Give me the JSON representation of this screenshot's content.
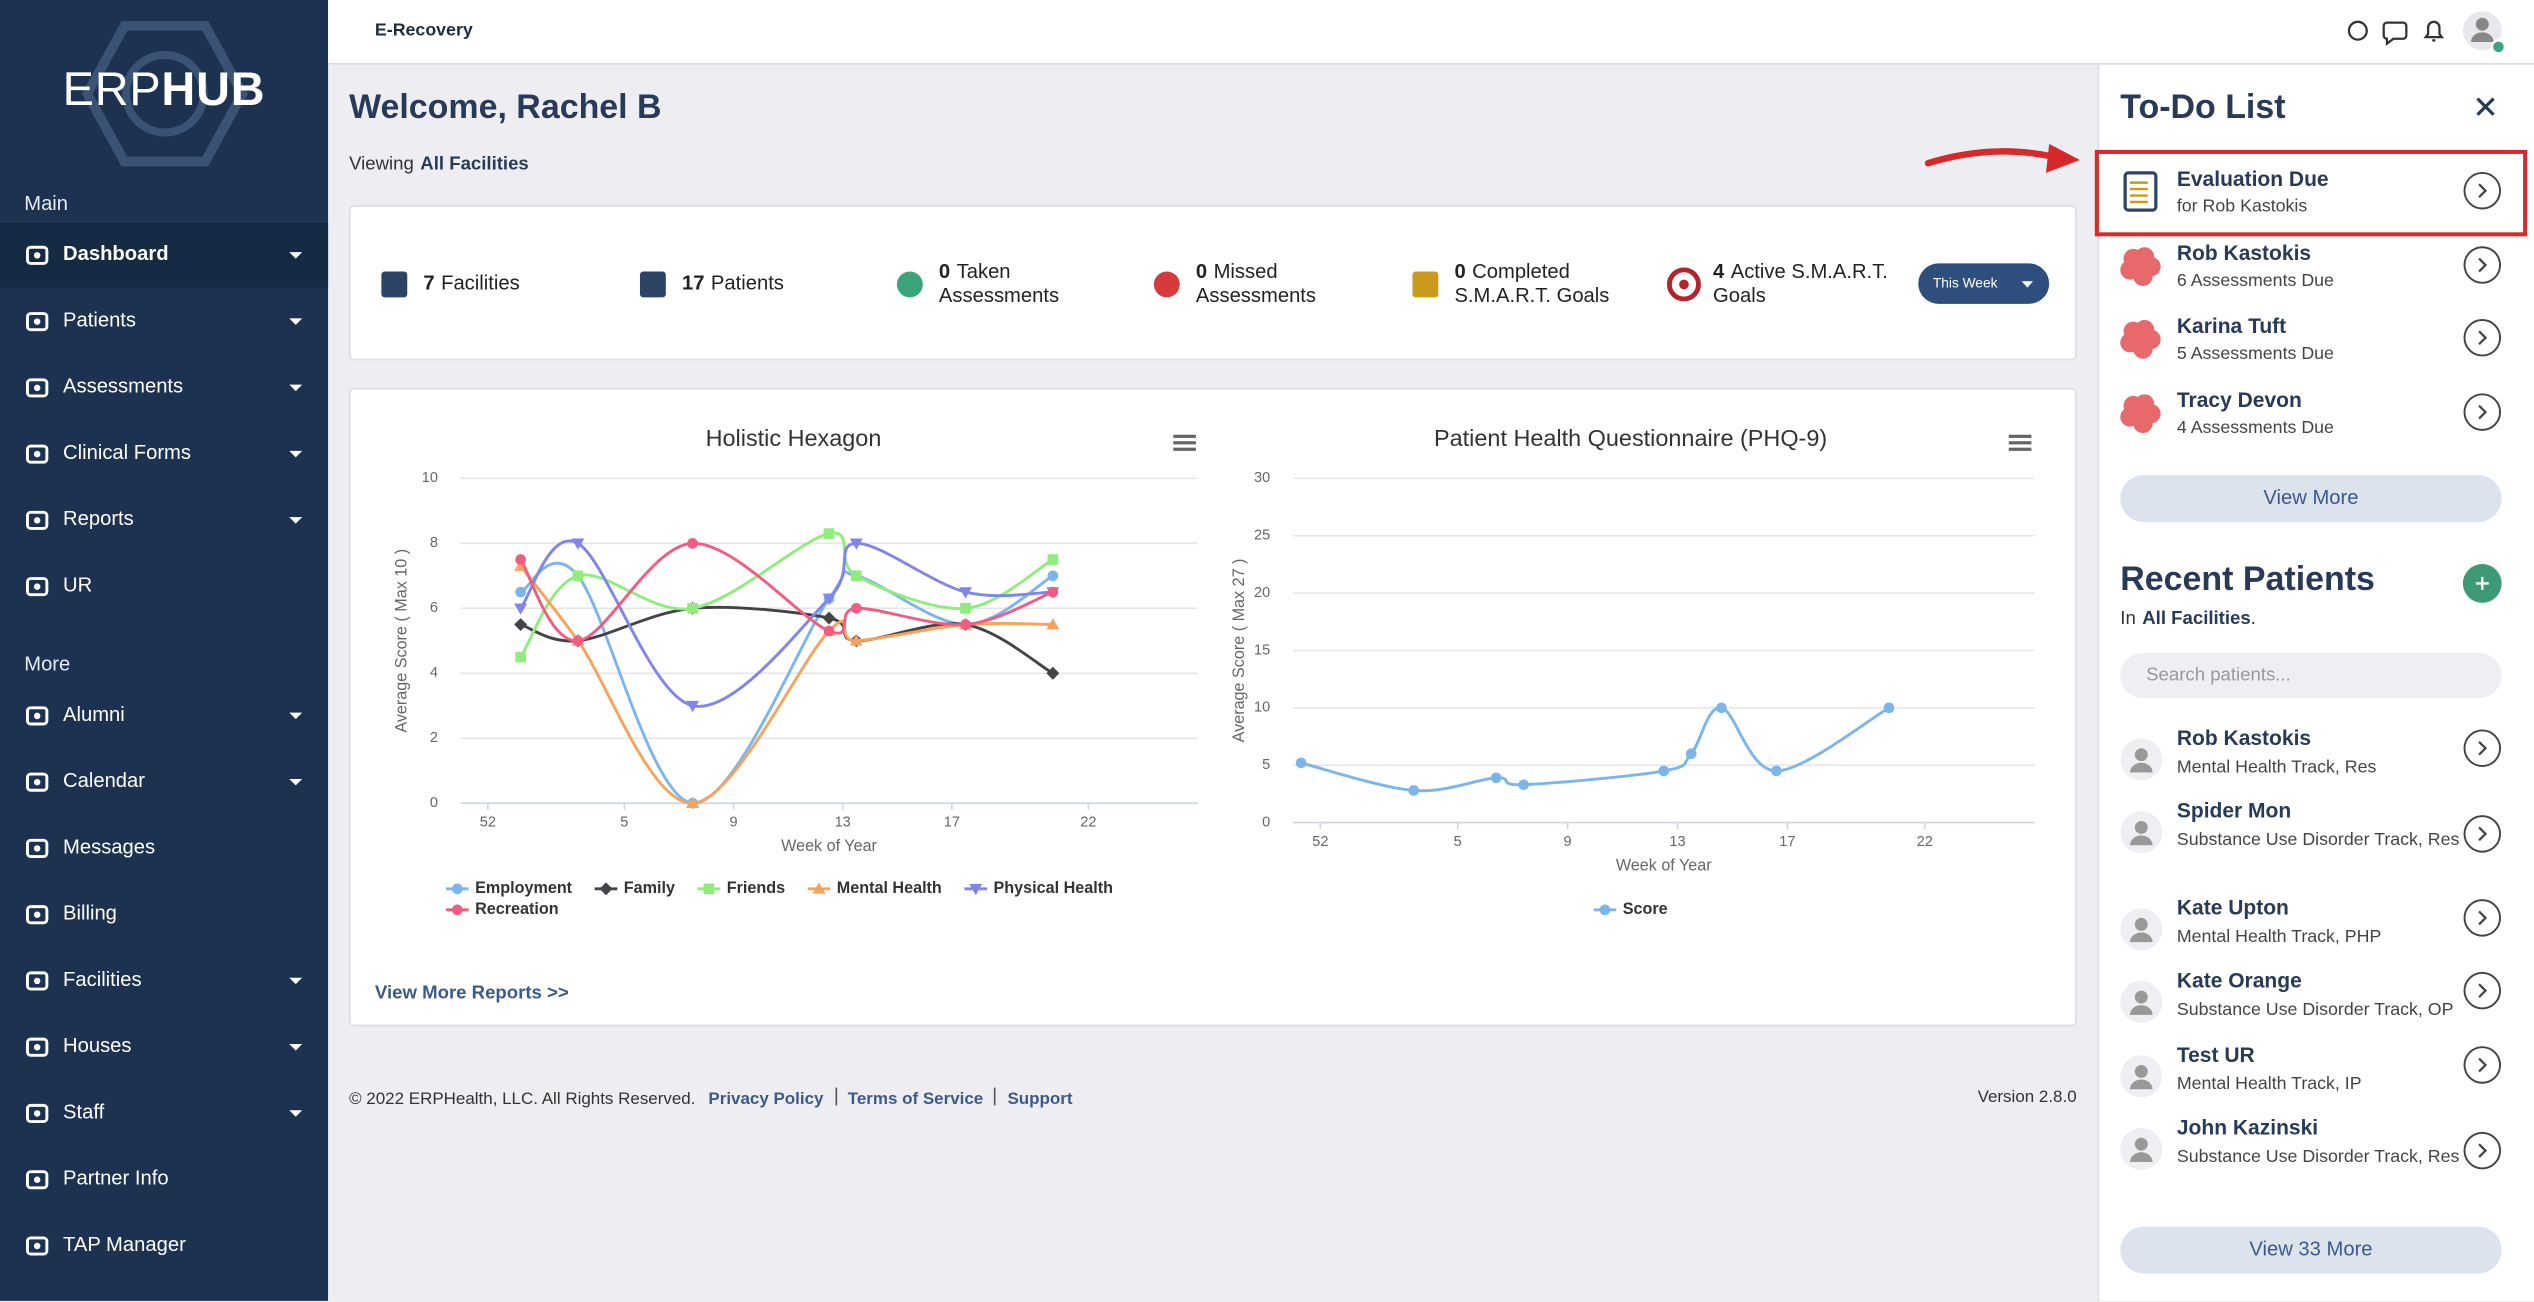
{
  "sidebar": {
    "logo": {
      "light": "ERP",
      "bold": "HUB"
    },
    "sections": [
      {
        "title": "Main",
        "items": [
          "Dashboard",
          "Patients",
          "Assessments",
          "Clinical Forms",
          "Reports",
          "UR"
        ]
      },
      {
        "title": "More",
        "items": [
          "Alumni",
          "Calendar",
          "Messages",
          "Billing",
          "Facilities",
          "Houses",
          "Staff",
          "Partner Info",
          "TAP Manager"
        ]
      }
    ]
  },
  "header": {
    "title": "E-Recovery"
  },
  "welcome": {
    "title": "Welcome, Rachel B",
    "viewing": "Viewing",
    "scope": "All Facilities"
  },
  "stats": {
    "items": [
      {
        "value": 7,
        "label": "Facilities"
      },
      {
        "value": 17,
        "label": "Patients"
      },
      {
        "value": 0,
        "label": "Taken Assessments"
      },
      {
        "value": 0,
        "label": "Missed Assessments"
      },
      {
        "value": 0,
        "label": "Completed S.M.A.R.T. Goals"
      },
      {
        "value": 4,
        "label": "Active S.M.A.R.T. Goals"
      }
    ],
    "period": "This Week"
  },
  "chart_data": [
    {
      "type": "line",
      "title": "Holistic Hexagon",
      "x_label": "Week of Year",
      "y_label": "Average Score ( Max 10 )",
      "x": [
        53.2,
        55.3,
        59.5,
        64.5,
        65.5,
        69.5,
        72.7
      ],
      "xlim": [
        51,
        78
      ],
      "xticks": [
        52,
        {
          "value": 57,
          "label": "5"
        },
        {
          "value": 61,
          "label": "9"
        },
        {
          "value": 65,
          "label": "13"
        },
        {
          "value": 69,
          "label": "17"
        },
        {
          "value": 74,
          "label": "22"
        }
      ],
      "ylim": [
        0,
        10
      ],
      "yticks": [
        0,
        2,
        4,
        6,
        8,
        10
      ],
      "grid": true,
      "series": [
        {
          "name": "Employment",
          "color": "#7cb5ec",
          "marker": "circle",
          "values": [
            6.5,
            7,
            0,
            6.3,
            7,
            5.5,
            7
          ]
        },
        {
          "name": "Family",
          "color": "#434348",
          "marker": "diamond",
          "values": [
            5.5,
            5,
            6,
            5.7,
            5,
            5.5,
            4
          ]
        },
        {
          "name": "Friends",
          "color": "#90ed7d",
          "marker": "square",
          "values": [
            4.5,
            7,
            6,
            8.3,
            7,
            6,
            7.5
          ]
        },
        {
          "name": "Mental Health",
          "color": "#f7a35c",
          "marker": "triangle",
          "values": [
            7.3,
            5,
            0,
            5.3,
            5,
            5.5,
            5.5
          ]
        },
        {
          "name": "Physical Health",
          "color": "#8085e9",
          "marker": "triangle-down",
          "values": [
            6,
            8,
            3,
            6.3,
            8,
            6.5,
            6.5
          ]
        },
        {
          "name": "Recreation",
          "color": "#f15c80",
          "marker": "circle",
          "values": [
            7.5,
            5,
            8,
            5.3,
            6,
            5.5,
            6.5
          ]
        }
      ]
    },
    {
      "type": "line",
      "title": "Patient Health Questionnaire (PHQ-9)",
      "x_label": "Week of Year",
      "y_label": "Average Score ( Max 27 )",
      "x": [
        51.3,
        55.4,
        58.4,
        59.4,
        64.5,
        65.5,
        66.6,
        68.6,
        72.7
      ],
      "xlim": [
        51,
        78
      ],
      "xticks": [
        52,
        {
          "value": 57,
          "label": "5"
        },
        {
          "value": 61,
          "label": "9"
        },
        {
          "value": 65,
          "label": "13"
        },
        {
          "value": 69,
          "label": "17"
        },
        {
          "value": 74,
          "label": "22"
        }
      ],
      "ylim": [
        0,
        30
      ],
      "yticks": [
        0,
        5,
        10,
        15,
        20,
        25,
        30
      ],
      "grid": true,
      "series": [
        {
          "name": "Score",
          "color": "#7cb5ec",
          "marker": "circle",
          "values": [
            5.2,
            2.8,
            3.9,
            3.3,
            4.5,
            6,
            10,
            4.5,
            10
          ]
        }
      ]
    }
  ],
  "reports_link": "View More Reports >>",
  "footer": {
    "copyright": "© 2022 ERPHealth, LLC. All Rights Reserved.",
    "links": [
      "Privacy Policy",
      "Terms of Service",
      "Support"
    ],
    "version": "Version 2.8.0"
  },
  "todo": {
    "title": "To-Do List",
    "items": [
      {
        "title": "Evaluation Due",
        "subtitle": "for Rob Kastokis"
      },
      {
        "title": "Rob Kastokis",
        "subtitle": "6 Assessments Due"
      },
      {
        "title": "Karina Tuft",
        "subtitle": "5 Assessments Due"
      },
      {
        "title": "Tracy Devon",
        "subtitle": "4 Assessments Due"
      }
    ],
    "view_more": "View More"
  },
  "recent": {
    "title": "Recent Patients",
    "in": "In",
    "scope": "All Facilities",
    "suffix": ".",
    "search": "Search patients...",
    "patients": [
      {
        "name": "Rob Kastokis",
        "track": "Mental Health Track, Res"
      },
      {
        "name": "Spider Mon",
        "track": "Substance Use Disorder Track, Res"
      },
      {
        "name": "Kate Upton",
        "track": "Mental Health Track, PHP"
      },
      {
        "name": "Kate Orange",
        "track": "Substance Use Disorder Track, OP"
      },
      {
        "name": "Test UR",
        "track": "Mental Health Track, IP"
      },
      {
        "name": "John Kazinski",
        "track": "Substance Use Disorder Track, Res"
      }
    ],
    "view_all": "View 33 More"
  }
}
